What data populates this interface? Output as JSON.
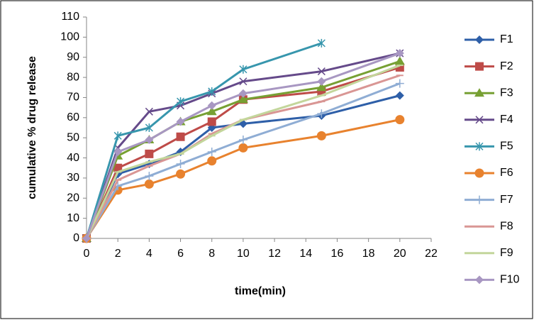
{
  "chart_data": {
    "type": "line",
    "x_label": "time(min)",
    "y_label": "cumulative % drug release",
    "x": [
      0,
      2,
      4,
      6,
      8,
      10,
      15,
      20
    ],
    "xlim": [
      0,
      22
    ],
    "xticks": [
      0,
      2,
      4,
      6,
      8,
      10,
      12,
      14,
      16,
      18,
      20,
      22
    ],
    "ylim": [
      0,
      110
    ],
    "yticks": [
      0,
      10,
      20,
      30,
      40,
      50,
      60,
      70,
      80,
      90,
      100,
      110
    ],
    "grid": false,
    "legend": "right",
    "series": [
      {
        "name": "F1",
        "color": "#2e5fa8",
        "marker": "diamond",
        "values": [
          0,
          32,
          37,
          43,
          55,
          57,
          61,
          71
        ]
      },
      {
        "name": "F2",
        "color": "#be4b48",
        "marker": "square",
        "values": [
          0,
          35,
          42,
          50.5,
          58,
          69,
          73,
          85
        ]
      },
      {
        "name": "F3",
        "color": "#77a033",
        "marker": "triangle",
        "values": [
          0,
          41,
          49,
          58,
          63,
          69,
          75,
          88
        ]
      },
      {
        "name": "F4",
        "color": "#654a8a",
        "marker": "x",
        "values": [
          0,
          45,
          63,
          66,
          72,
          78,
          83,
          92
        ]
      },
      {
        "name": "F5",
        "color": "#3796ad",
        "marker": "star",
        "values": [
          0,
          51,
          55,
          68,
          73,
          84,
          97,
          null
        ]
      },
      {
        "name": "F6",
        "color": "#e8822e",
        "marker": "circle",
        "values": [
          0,
          24,
          27,
          32,
          38.5,
          45,
          51,
          59
        ]
      },
      {
        "name": "F7",
        "color": "#8fadd4",
        "marker": "plus",
        "values": [
          0,
          26,
          31,
          37,
          43,
          49,
          62,
          77
        ]
      },
      {
        "name": "F8",
        "color": "#d99694",
        "marker": "dash",
        "values": [
          0,
          29,
          36,
          42,
          52,
          59,
          68,
          81
        ]
      },
      {
        "name": "F9",
        "color": "#c3d69b",
        "marker": "dash",
        "values": [
          0,
          33,
          38,
          42,
          51,
          59,
          71,
          86
        ]
      },
      {
        "name": "F10",
        "color": "#a897c2",
        "marker": "diamond",
        "values": [
          0,
          43,
          49,
          58,
          66,
          72,
          78,
          92
        ]
      }
    ]
  }
}
